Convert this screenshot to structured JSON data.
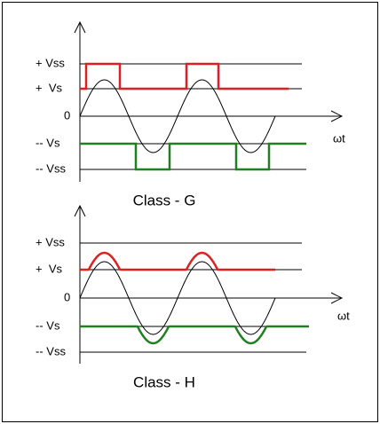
{
  "diagrams": [
    {
      "title": "Class - G",
      "levels": [
        "+ Vss",
        "+  Vs",
        "0",
        "-- Vs",
        "-- Vss"
      ],
      "x_axis_label": "ωt"
    },
    {
      "title": "Class - H",
      "levels": [
        "+ Vss",
        "+  Vs",
        "0",
        "-- Vs",
        "-- Vss"
      ],
      "x_axis_label": "ωt"
    }
  ]
}
